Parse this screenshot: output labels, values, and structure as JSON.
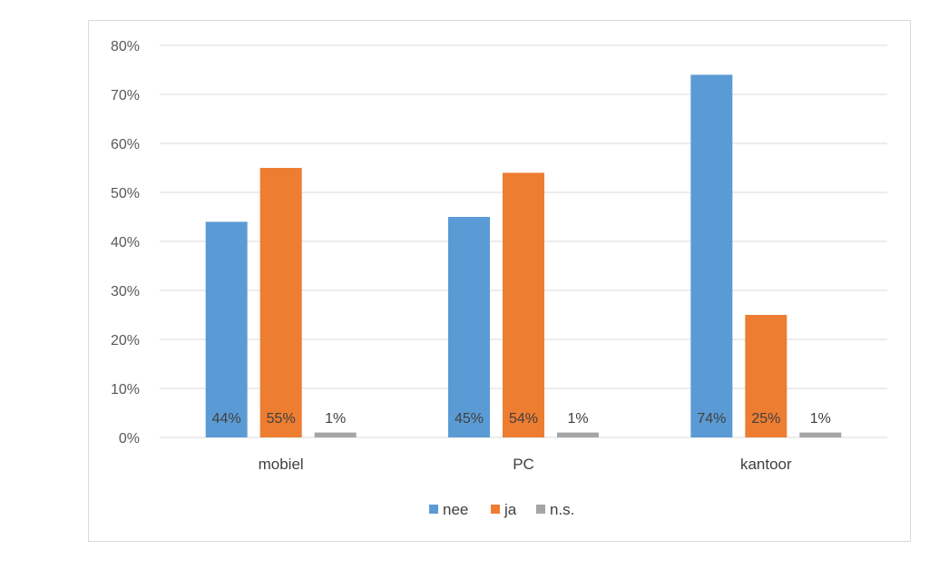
{
  "chart_data": {
    "type": "bar",
    "title": "",
    "xlabel": "",
    "ylabel": "",
    "categories": [
      "mobiel",
      "PC",
      "kantoor"
    ],
    "series": [
      {
        "name": "nee",
        "color": "#5b9bd5",
        "values": [
          44,
          45,
          74
        ],
        "labels": [
          "44%",
          "45%",
          "74%"
        ]
      },
      {
        "name": "ja",
        "color": "#ed7d31",
        "values": [
          55,
          54,
          25
        ],
        "labels": [
          "55%",
          "54%",
          "25%"
        ]
      },
      {
        "name": "n.s.",
        "color": "#a5a5a5",
        "values": [
          1,
          1,
          1
        ],
        "labels": [
          "1%",
          "1%",
          "1%"
        ]
      }
    ],
    "ylim": [
      0,
      80
    ],
    "yticks": [
      0,
      10,
      20,
      30,
      40,
      50,
      60,
      70,
      80
    ],
    "ytick_labels": [
      "0%",
      "10%",
      "20%",
      "30%",
      "40%",
      "50%",
      "60%",
      "70%",
      "80%"
    ],
    "grid": true,
    "legend_position": "bottom"
  }
}
